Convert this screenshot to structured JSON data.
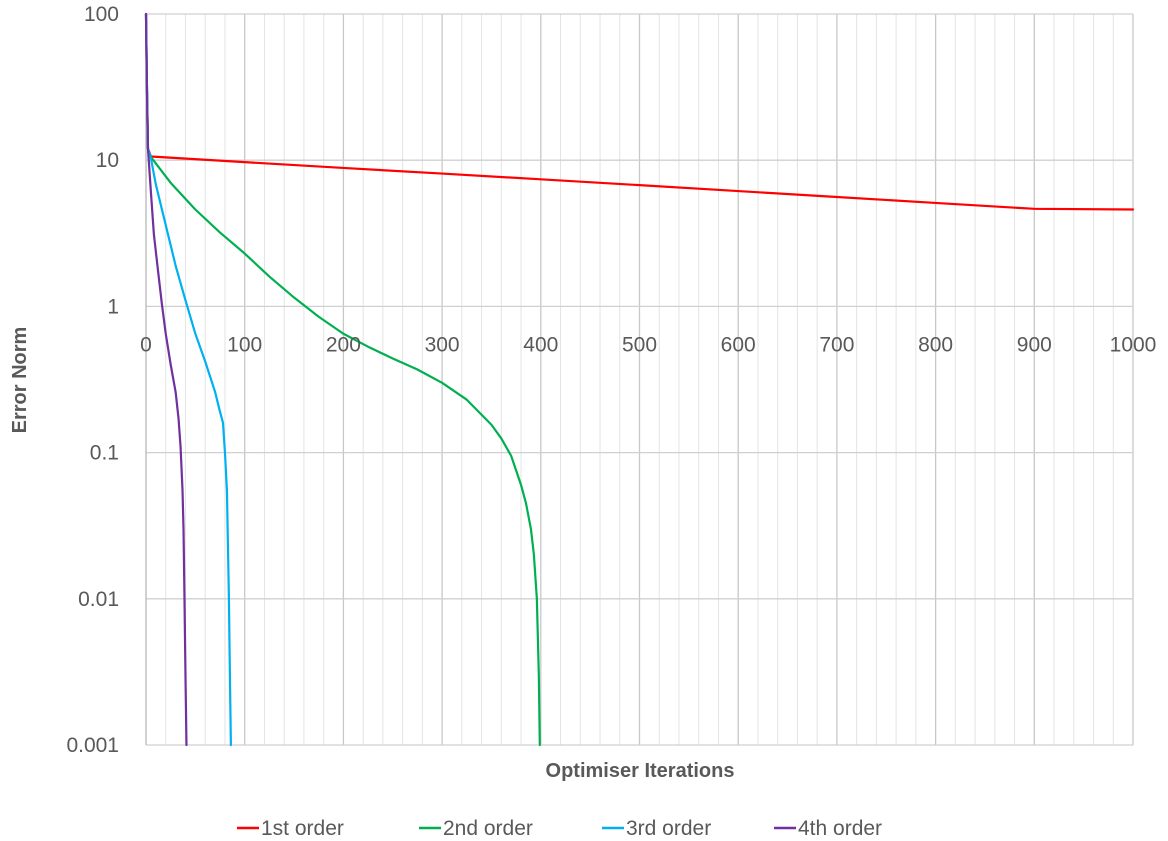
{
  "chart_data": {
    "type": "line",
    "title": "",
    "xlabel": "Optimiser Iterations",
    "ylabel": "Error Norm",
    "xlim": [
      0,
      1000
    ],
    "ylim": [
      0.001,
      100
    ],
    "yscale": "log",
    "grid": true,
    "legend_position": "bottom",
    "x_ticks": [
      "0",
      "100",
      "200",
      "300",
      "400",
      "500",
      "600",
      "700",
      "800",
      "900",
      "1000"
    ],
    "y_ticks": [
      "100",
      "10",
      "1",
      "0.1",
      "0.01",
      "0.001"
    ],
    "series": [
      {
        "name": "1st order",
        "color": "#ff0000",
        "x": [
          0,
          1,
          2,
          5,
          100,
          200,
          300,
          400,
          500,
          600,
          700,
          800,
          900,
          1000
        ],
        "y": [
          100,
          30,
          12,
          10.6,
          9.7,
          8.85,
          8.1,
          7.4,
          6.75,
          6.15,
          5.6,
          5.1,
          4.65,
          4.6
        ]
      },
      {
        "name": "2nd order",
        "color": "#00b050",
        "x": [
          0,
          1,
          2,
          5,
          25,
          50,
          75,
          100,
          125,
          150,
          175,
          200,
          225,
          250,
          275,
          300,
          325,
          350,
          360,
          370,
          380,
          385,
          390,
          393,
          396,
          398,
          399
        ],
        "y": [
          100,
          30,
          12,
          10.5,
          7.0,
          4.6,
          3.2,
          2.3,
          1.6,
          1.15,
          0.85,
          0.65,
          0.53,
          0.44,
          0.37,
          0.3,
          0.23,
          0.155,
          0.125,
          0.095,
          0.06,
          0.045,
          0.03,
          0.02,
          0.01,
          0.003,
          0.001
        ]
      },
      {
        "name": "3rd order",
        "color": "#00b0f0",
        "x": [
          0,
          1,
          2,
          5,
          10,
          20,
          30,
          40,
          50,
          60,
          70,
          75,
          78,
          80,
          82,
          84,
          85,
          86
        ],
        "y": [
          100,
          30,
          12,
          10.3,
          6.8,
          3.6,
          1.9,
          1.1,
          0.65,
          0.42,
          0.26,
          0.19,
          0.16,
          0.1,
          0.055,
          0.01,
          0.003,
          0.001
        ]
      },
      {
        "name": "4th order",
        "color": "#7030a0",
        "x": [
          0,
          1,
          2,
          5,
          8,
          12,
          16,
          20,
          25,
          30,
          33,
          35,
          37,
          38,
          39,
          40,
          41
        ],
        "y": [
          100,
          30,
          12,
          6.0,
          3.1,
          1.8,
          1.05,
          0.65,
          0.4,
          0.26,
          0.17,
          0.11,
          0.055,
          0.03,
          0.01,
          0.003,
          0.001
        ]
      }
    ]
  }
}
